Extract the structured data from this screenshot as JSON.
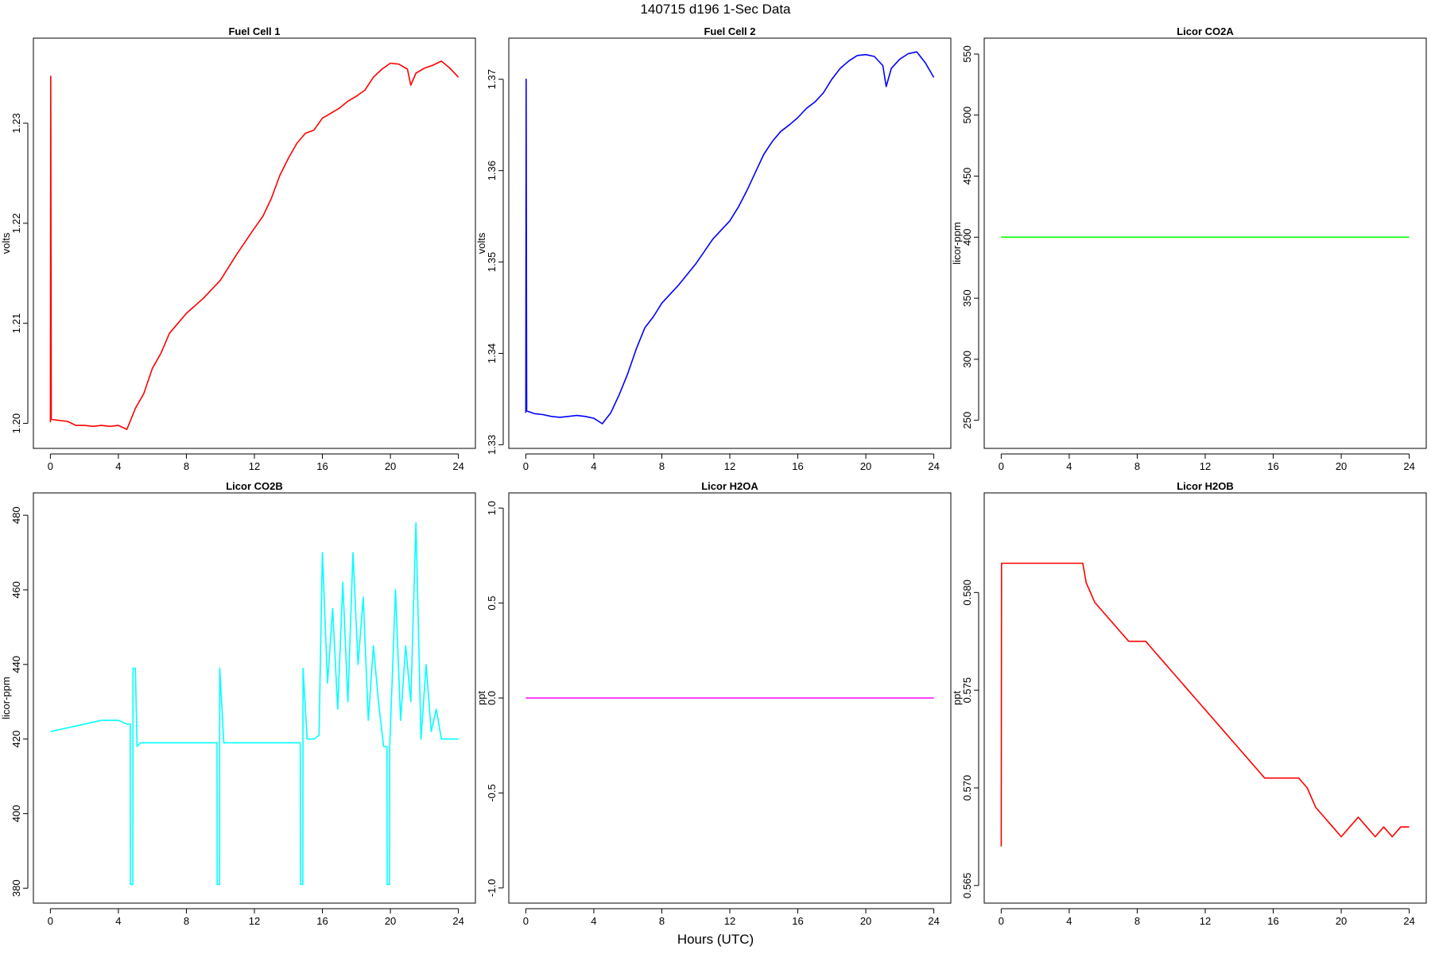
{
  "figure": {
    "title": "140715   d196   1-Sec Data",
    "xlabel": "Hours (UTC)"
  },
  "chart_data": [
    {
      "type": "line",
      "title": "Fuel Cell 1",
      "xlabel": "",
      "ylabel": "volts",
      "color": "#ff0000",
      "xlim": [
        -1,
        25
      ],
      "ylim": [
        1.1975,
        1.2385
      ],
      "xticks": [
        0,
        4,
        8,
        12,
        16,
        20,
        24
      ],
      "yticks": [
        1.2,
        1.21,
        1.22,
        1.23
      ],
      "ytick_labels": [
        "1.20",
        "1.21",
        "1.22",
        "1.23"
      ],
      "x": [
        0,
        0.02,
        0.05,
        0.5,
        1,
        1.5,
        2,
        2.5,
        3,
        3.5,
        4,
        4.5,
        5,
        5.5,
        6,
        6.5,
        7,
        7.5,
        8,
        9,
        10,
        11,
        12,
        12.5,
        13,
        13.5,
        14,
        14.5,
        15,
        15.5,
        16,
        16.5,
        17,
        17.5,
        18,
        18.5,
        19,
        19.5,
        20,
        20.5,
        21,
        21.2,
        21.5,
        22,
        22.5,
        23,
        23.5,
        24
      ],
      "y": [
        1.2001,
        1.2347,
        1.2004,
        1.2003,
        1.2002,
        1.1998,
        1.1998,
        1.1997,
        1.1998,
        1.1997,
        1.1998,
        1.1994,
        1.2015,
        1.203,
        1.2055,
        1.207,
        1.209,
        1.21,
        1.211,
        1.2125,
        1.2143,
        1.217,
        1.2195,
        1.2207,
        1.2225,
        1.2248,
        1.2265,
        1.228,
        1.229,
        1.2293,
        1.2305,
        1.231,
        1.2315,
        1.2322,
        1.2327,
        1.2333,
        1.2346,
        1.2354,
        1.236,
        1.2359,
        1.2354,
        1.2338,
        1.235,
        1.2355,
        1.2358,
        1.2362,
        1.2355,
        1.2346
      ]
    },
    {
      "type": "line",
      "title": "Fuel Cell 2",
      "xlabel": "",
      "ylabel": "volts",
      "color": "#0000ff",
      "xlim": [
        -1,
        25
      ],
      "ylim": [
        1.3296,
        1.3745
      ],
      "xticks": [
        0,
        4,
        8,
        12,
        16,
        20,
        24
      ],
      "yticks": [
        1.33,
        1.34,
        1.35,
        1.36,
        1.37
      ],
      "ytick_labels": [
        "1.33",
        "1.34",
        "1.35",
        "1.36",
        "1.37"
      ],
      "x": [
        0,
        0.02,
        0.05,
        0.5,
        1,
        1.5,
        2,
        2.5,
        3,
        3.5,
        4,
        4.5,
        5,
        5.5,
        6,
        6.5,
        7,
        7.5,
        8,
        9,
        10,
        11,
        12,
        12.5,
        13,
        13.5,
        14,
        14.5,
        15,
        15.5,
        16,
        16.5,
        17,
        17.5,
        18,
        18.5,
        19,
        19.5,
        20,
        20.5,
        21,
        21.2,
        21.5,
        22,
        22.5,
        23,
        23.5,
        24
      ],
      "y": [
        1.3335,
        1.37,
        1.3337,
        1.3334,
        1.3333,
        1.3331,
        1.333,
        1.3331,
        1.3332,
        1.3331,
        1.3329,
        1.3323,
        1.3335,
        1.3355,
        1.3378,
        1.3405,
        1.3428,
        1.344,
        1.3455,
        1.3475,
        1.3498,
        1.3525,
        1.3545,
        1.356,
        1.3578,
        1.3598,
        1.3618,
        1.3632,
        1.3643,
        1.365,
        1.3658,
        1.3668,
        1.3675,
        1.3685,
        1.37,
        1.3712,
        1.372,
        1.3726,
        1.3727,
        1.3725,
        1.3715,
        1.3692,
        1.3712,
        1.3722,
        1.3728,
        1.373,
        1.3718,
        1.3702
      ]
    },
    {
      "type": "line",
      "title": "Licor CO2A",
      "xlabel": "",
      "ylabel": "licor-ppm",
      "color": "#00ff00",
      "xlim": [
        -1,
        25
      ],
      "ylim": [
        227,
        563
      ],
      "xticks": [
        0,
        4,
        8,
        12,
        16,
        20,
        24
      ],
      "yticks": [
        250,
        300,
        350,
        400,
        450,
        500,
        550
      ],
      "ytick_labels": [
        "250",
        "300",
        "350",
        "400",
        "450",
        "500",
        "550"
      ],
      "x": [
        0,
        24
      ],
      "y": [
        400,
        400
      ]
    },
    {
      "type": "line",
      "title": "Licor CO2B",
      "xlabel": "",
      "ylabel": "licor-ppm",
      "color": "#00ffff",
      "xlim": [
        -1,
        25
      ],
      "ylim": [
        376,
        486
      ],
      "xticks": [
        0,
        4,
        8,
        12,
        16,
        20,
        24
      ],
      "yticks": [
        380,
        400,
        420,
        440,
        460,
        480
      ],
      "ytick_labels": [
        "380",
        "400",
        "420",
        "440",
        "460",
        "480"
      ],
      "x": [
        0,
        1,
        2,
        3,
        4,
        4.5,
        4.7,
        4.71,
        4.85,
        4.86,
        5.0,
        5.1,
        5.3,
        6,
        8,
        9.5,
        9.8,
        9.81,
        9.95,
        9.96,
        10.2,
        12,
        14,
        14.5,
        14.7,
        14.71,
        14.85,
        14.86,
        15.1,
        15.5,
        15.8,
        16,
        16.3,
        16.6,
        16.9,
        17.2,
        17.5,
        17.8,
        18.1,
        18.4,
        18.7,
        19.0,
        19.3,
        19.6,
        19.8,
        19.81,
        19.95,
        19.96,
        20.3,
        20.6,
        20.9,
        21.2,
        21.5,
        21.8,
        22.1,
        22.4,
        22.7,
        23,
        24
      ],
      "y": [
        422,
        423,
        424,
        425,
        425,
        424,
        424,
        381,
        381,
        439,
        439,
        418,
        419,
        419,
        419,
        419,
        419,
        381,
        381,
        439,
        419,
        419,
        419,
        419,
        419,
        381,
        381,
        439,
        420,
        420,
        421,
        470,
        435,
        455,
        428,
        462,
        430,
        470,
        440,
        458,
        425,
        445,
        430,
        418,
        418,
        381,
        381,
        418,
        460,
        425,
        445,
        430,
        478,
        420,
        440,
        422,
        428,
        420,
        420
      ]
    },
    {
      "type": "line",
      "title": "Licor H2OA",
      "xlabel": "",
      "ylabel": "ppt",
      "color": "#ff00ff",
      "xlim": [
        -1,
        25
      ],
      "ylim": [
        -1.08,
        1.08
      ],
      "xticks": [
        0,
        4,
        8,
        12,
        16,
        20,
        24
      ],
      "yticks": [
        -1.0,
        -0.5,
        0.0,
        0.5,
        1.0
      ],
      "ytick_labels": [
        "-1.0",
        "-0.5",
        "0.0",
        "0.5",
        "1.0"
      ],
      "x": [
        0,
        24
      ],
      "y": [
        0,
        0
      ]
    },
    {
      "type": "line",
      "title": "Licor H2OB",
      "xlabel": "",
      "ylabel": "ppt",
      "color": "#ff0000",
      "xlim": [
        -1,
        25
      ],
      "ylim": [
        0.5641,
        0.5851
      ],
      "xticks": [
        0,
        4,
        8,
        12,
        16,
        20,
        24
      ],
      "yticks": [
        0.565,
        0.57,
        0.575,
        0.58
      ],
      "ytick_labels": [
        "0.565",
        "0.570",
        "0.575",
        "0.580"
      ],
      "x": [
        0,
        0.02,
        0.05,
        0.5,
        1,
        2,
        3,
        4,
        4.8,
        5.0,
        5.5,
        6.0,
        6.5,
        7.0,
        7.5,
        8.0,
        8.5,
        9.0,
        9.5,
        10.0,
        10.5,
        11.0,
        11.5,
        12.0,
        12.5,
        13.0,
        13.5,
        14.0,
        14.5,
        15.0,
        15.5,
        16.0,
        16.5,
        17.0,
        17.5,
        18.0,
        18.5,
        19.0,
        19.5,
        20.0,
        20.5,
        21.0,
        21.5,
        22.0,
        22.5,
        23.0,
        23.5,
        24.0
      ],
      "y": [
        0.567,
        0.5815,
        0.5815,
        0.5815,
        0.5815,
        0.5815,
        0.5815,
        0.5815,
        0.5815,
        0.5805,
        0.5795,
        0.579,
        0.5785,
        0.578,
        0.5775,
        0.5775,
        0.5775,
        0.577,
        0.5765,
        0.576,
        0.5755,
        0.575,
        0.5745,
        0.574,
        0.5735,
        0.573,
        0.5725,
        0.572,
        0.5715,
        0.571,
        0.5705,
        0.5705,
        0.5705,
        0.5705,
        0.5705,
        0.57,
        0.569,
        0.5685,
        0.568,
        0.5675,
        0.568,
        0.5685,
        0.568,
        0.5675,
        0.568,
        0.5675,
        0.568,
        0.568
      ]
    }
  ]
}
